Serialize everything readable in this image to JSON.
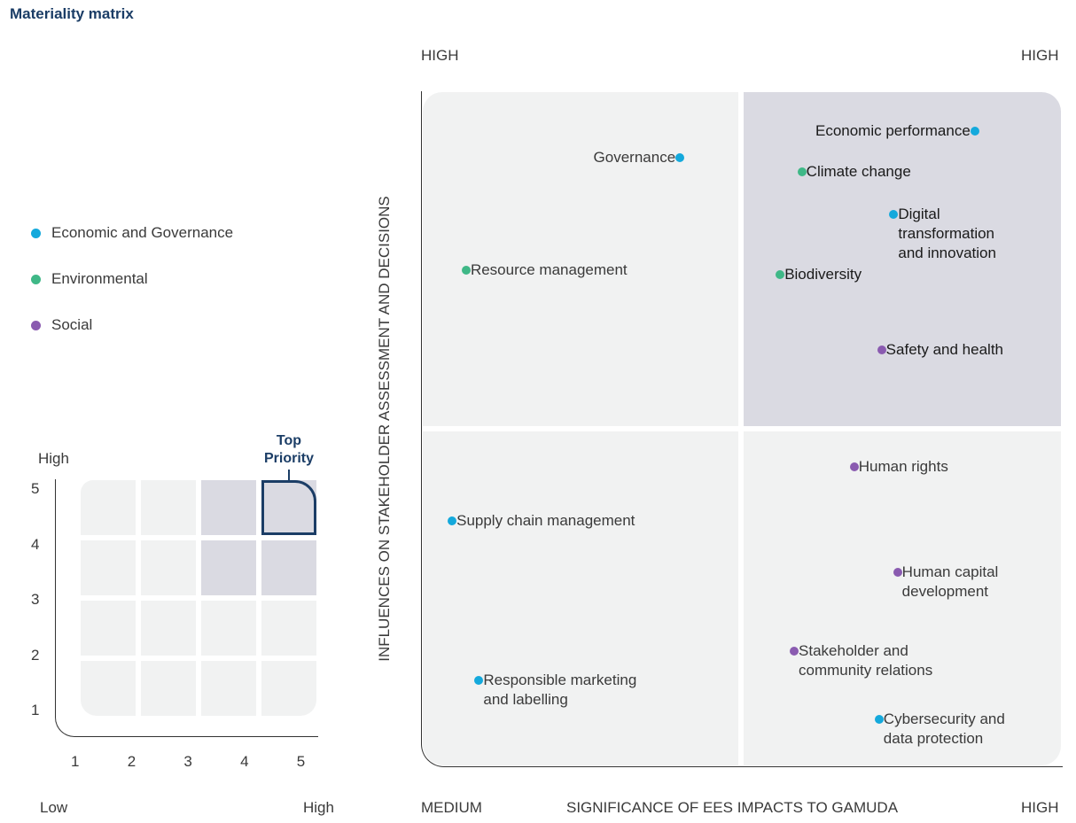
{
  "title": "Materiality matrix",
  "colors": {
    "economic_governance": "#14a9dc",
    "environmental": "#3fb887",
    "social": "#8a5bb0",
    "accent": "#1b3d66",
    "quadrant_light": "#f1f2f2",
    "quadrant_top": "#dadae2"
  },
  "legend": [
    {
      "label": "Economic and Governance",
      "category": "economic_governance"
    },
    {
      "label": "Environmental",
      "category": "environmental"
    },
    {
      "label": "Social",
      "category": "social"
    }
  ],
  "mini_matrix": {
    "y_label_high": "High",
    "x_label_low": "Low",
    "x_label_high": "High",
    "x_ticks": [
      "1",
      "2",
      "3",
      "4",
      "5"
    ],
    "y_ticks": [
      "5",
      "4",
      "3",
      "2",
      "1"
    ],
    "highlighted_cells": [
      [
        4,
        5
      ],
      [
        5,
        5
      ],
      [
        4,
        4
      ],
      [
        5,
        4
      ]
    ],
    "top_priority_cell": [
      5,
      5
    ],
    "top_priority_label_line1": "Top",
    "top_priority_label_line2": "Priority"
  },
  "chart_data": {
    "type": "scatter",
    "title": "Materiality matrix",
    "xlabel": "SIGNIFICANCE OF EES IMPACTS TO GAMUDA",
    "ylabel": "INFLUENCES ON STAKEHOLDER ASSESSMENT AND DECISIONS",
    "x_axis_labels": {
      "start": "MEDIUM",
      "end": "HIGH"
    },
    "y_axis_labels": {
      "top": "HIGH",
      "top_right": "HIGH"
    },
    "xlim": [
      0,
      100
    ],
    "ylim": [
      0,
      100
    ],
    "quadrants": [
      {
        "name": "top-left",
        "highlight": false
      },
      {
        "name": "top-right",
        "highlight": true
      },
      {
        "name": "bottom-left",
        "highlight": false
      },
      {
        "name": "bottom-right",
        "highlight": false
      }
    ],
    "points": [
      {
        "label": "Economic performance",
        "category": "economic_governance",
        "x": 86.5,
        "y": 94.2,
        "label_side": "left"
      },
      {
        "label": "Governance",
        "category": "economic_governance",
        "x": 40.3,
        "y": 90.2,
        "label_side": "left"
      },
      {
        "label": "Climate change",
        "category": "environmental",
        "x": 59.4,
        "y": 88.2,
        "label_side": "right"
      },
      {
        "label": "Digital\ntransformation\nand innovation",
        "category": "economic_governance",
        "x": 73.8,
        "y": 81.9,
        "label_side": "right"
      },
      {
        "label": "Resource management",
        "category": "environmental",
        "x": 6.8,
        "y": 73.5,
        "label_side": "right"
      },
      {
        "label": "Biodiversity",
        "category": "environmental",
        "x": 56.0,
        "y": 72.9,
        "label_side": "right"
      },
      {
        "label": "Safety and health",
        "category": "social",
        "x": 71.9,
        "y": 61.7,
        "label_side": "right"
      },
      {
        "label": "Human rights",
        "category": "social",
        "x": 67.6,
        "y": 44.3,
        "label_side": "right"
      },
      {
        "label": "Supply chain management",
        "category": "economic_governance",
        "x": 4.6,
        "y": 36.3,
        "label_side": "right"
      },
      {
        "label": "Human capital\ndevelopment",
        "category": "social",
        "x": 74.4,
        "y": 28.7,
        "label_side": "right"
      },
      {
        "label": "Stakeholder and\ncommunity relations",
        "category": "social",
        "x": 58.2,
        "y": 17.0,
        "label_side": "right"
      },
      {
        "label": "Responsible marketing\nand labelling",
        "category": "economic_governance",
        "x": 8.8,
        "y": 12.6,
        "label_side": "right"
      },
      {
        "label": "Cybersecurity and\ndata protection",
        "category": "economic_governance",
        "x": 71.5,
        "y": 6.9,
        "label_side": "right"
      }
    ]
  }
}
